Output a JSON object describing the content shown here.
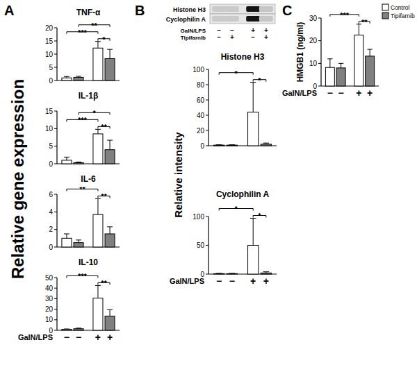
{
  "panel_labels": [
    "A",
    "B",
    "C"
  ],
  "blot": {
    "bands": [
      "Histone H3",
      "Cyclophilin A"
    ],
    "rows": [
      {
        "label": "GalN/LPS",
        "signs": [
          "−",
          "−",
          "+",
          "+"
        ]
      },
      {
        "label": "Tipifarnib",
        "signs": [
          "−",
          "+",
          "−",
          "+"
        ]
      }
    ]
  },
  "chart_data": [
    {
      "type": "bar",
      "title": "TNF-α",
      "ylabel": "Relative gene expression",
      "categories": [
        null,
        null,
        null,
        null
      ],
      "values": [
        1.0,
        1.2,
        12.3,
        8.3
      ],
      "errors": [
        0.5,
        0.4,
        2.5,
        3.5
      ],
      "colors": [
        "#ffffff",
        "#808080",
        "#ffffff",
        "#808080"
      ],
      "ylim": [
        0,
        20
      ],
      "yticks": [
        0,
        5,
        10,
        15,
        20
      ],
      "tick_labels": "y",
      "annotations": [
        {
          "from": 0,
          "to": 2,
          "label": "***"
        },
        {
          "from": 1,
          "to": 3,
          "label": "**"
        },
        {
          "from": 2,
          "to": 3,
          "label": "*"
        }
      ]
    },
    {
      "type": "bar",
      "title": "IL-1β",
      "categories": [
        null,
        null,
        null,
        null
      ],
      "values": [
        1.0,
        0.3,
        8.5,
        4.0
      ],
      "errors": [
        0.9,
        0.2,
        1.3,
        2.7
      ],
      "colors": [
        "#ffffff",
        "#808080",
        "#ffffff",
        "#808080"
      ],
      "ylim": [
        0,
        15
      ],
      "yticks": [
        0,
        5,
        10,
        15
      ],
      "tick_labels": "y",
      "annotations": [
        {
          "from": 0,
          "to": 2,
          "label": "***"
        },
        {
          "from": 1,
          "to": 3,
          "label": "*"
        },
        {
          "from": 2,
          "to": 3,
          "label": "**"
        }
      ]
    },
    {
      "type": "bar",
      "title": "IL-6",
      "categories": [
        null,
        null,
        null,
        null
      ],
      "values": [
        1.0,
        0.5,
        3.7,
        1.5
      ],
      "errors": [
        0.5,
        0.3,
        1.8,
        0.8
      ],
      "colors": [
        "#ffffff",
        "#808080",
        "#ffffff",
        "#808080"
      ],
      "ylim": [
        0,
        6
      ],
      "yticks": [
        0,
        2,
        4,
        6
      ],
      "tick_labels": "y",
      "annotations": [
        {
          "from": 0,
          "to": 2,
          "label": "**"
        },
        {
          "from": 2,
          "to": 3,
          "label": "**"
        }
      ]
    },
    {
      "type": "bar",
      "title": "IL-10",
      "xlabel": "GalN/LPS",
      "categories": [
        "−",
        "−",
        "+",
        "+"
      ],
      "values": [
        1.0,
        1.5,
        30.5,
        13.5
      ],
      "errors": [
        0.3,
        0.6,
        12.0,
        6.0
      ],
      "colors": [
        "#ffffff",
        "#808080",
        "#ffffff",
        "#808080"
      ],
      "ylim": [
        0,
        50
      ],
      "yticks": [
        0,
        10,
        20,
        30,
        40,
        50
      ],
      "annotations": [
        {
          "from": 0,
          "to": 2,
          "label": "***"
        },
        {
          "from": 2,
          "to": 3,
          "label": "**"
        }
      ]
    },
    {
      "type": "bar",
      "title": "Histone H3",
      "ylabel": "Relative intensity",
      "categories": [
        null,
        null,
        null,
        null
      ],
      "values": [
        0.8,
        0.8,
        44,
        2
      ],
      "errors": [
        0.5,
        0.5,
        39,
        1.5
      ],
      "colors": [
        "#ffffff",
        "#808080",
        "#ffffff",
        "#808080"
      ],
      "ylim": [
        0,
        100
      ],
      "yticks": [
        0,
        20,
        40,
        60,
        80,
        100
      ],
      "tick_labels": "y",
      "annotations": [
        {
          "from": 0,
          "to": 2,
          "label": "*"
        },
        {
          "from": 2,
          "to": 3,
          "label": "*"
        }
      ]
    },
    {
      "type": "bar",
      "title": "Cyclophilin A",
      "xlabel": "GalN/LPS",
      "categories": [
        "−",
        "−",
        "+",
        "+"
      ],
      "values": [
        0.8,
        0.8,
        50,
        2
      ],
      "errors": [
        0.5,
        0.5,
        47,
        2
      ],
      "colors": [
        "#ffffff",
        "#808080",
        "#ffffff",
        "#808080"
      ],
      "ylim": [
        0,
        100
      ],
      "yticks": [
        0,
        50,
        100
      ],
      "annotations": [
        {
          "from": 0,
          "to": 2,
          "label": "*"
        },
        {
          "from": 2,
          "to": 3,
          "label": "*"
        }
      ]
    },
    {
      "type": "bar",
      "ylabel": "HMGB1 (ng/ml)",
      "xlabel": "GalN/LPS",
      "categories": [
        "−",
        "−",
        "+",
        "+"
      ],
      "series": [
        {
          "name": "Control",
          "color": "#ffffff",
          "values": [
            8.2,
            null,
            22.5,
            null
          ],
          "errors": [
            3.8,
            null,
            4.8,
            null
          ]
        },
        {
          "name": "Tipifarnib",
          "color": "#808080",
          "values": [
            null,
            8.0,
            null,
            13.2
          ],
          "errors": [
            null,
            2.0,
            null,
            3.0
          ]
        }
      ],
      "ylim": [
        0,
        30
      ],
      "yticks": [
        0,
        10,
        20,
        30
      ],
      "legend": "top-right",
      "annotations": [
        {
          "from": 0,
          "to": 2,
          "label": "***"
        },
        {
          "from": 2,
          "to": 3,
          "label": "**"
        }
      ]
    }
  ]
}
